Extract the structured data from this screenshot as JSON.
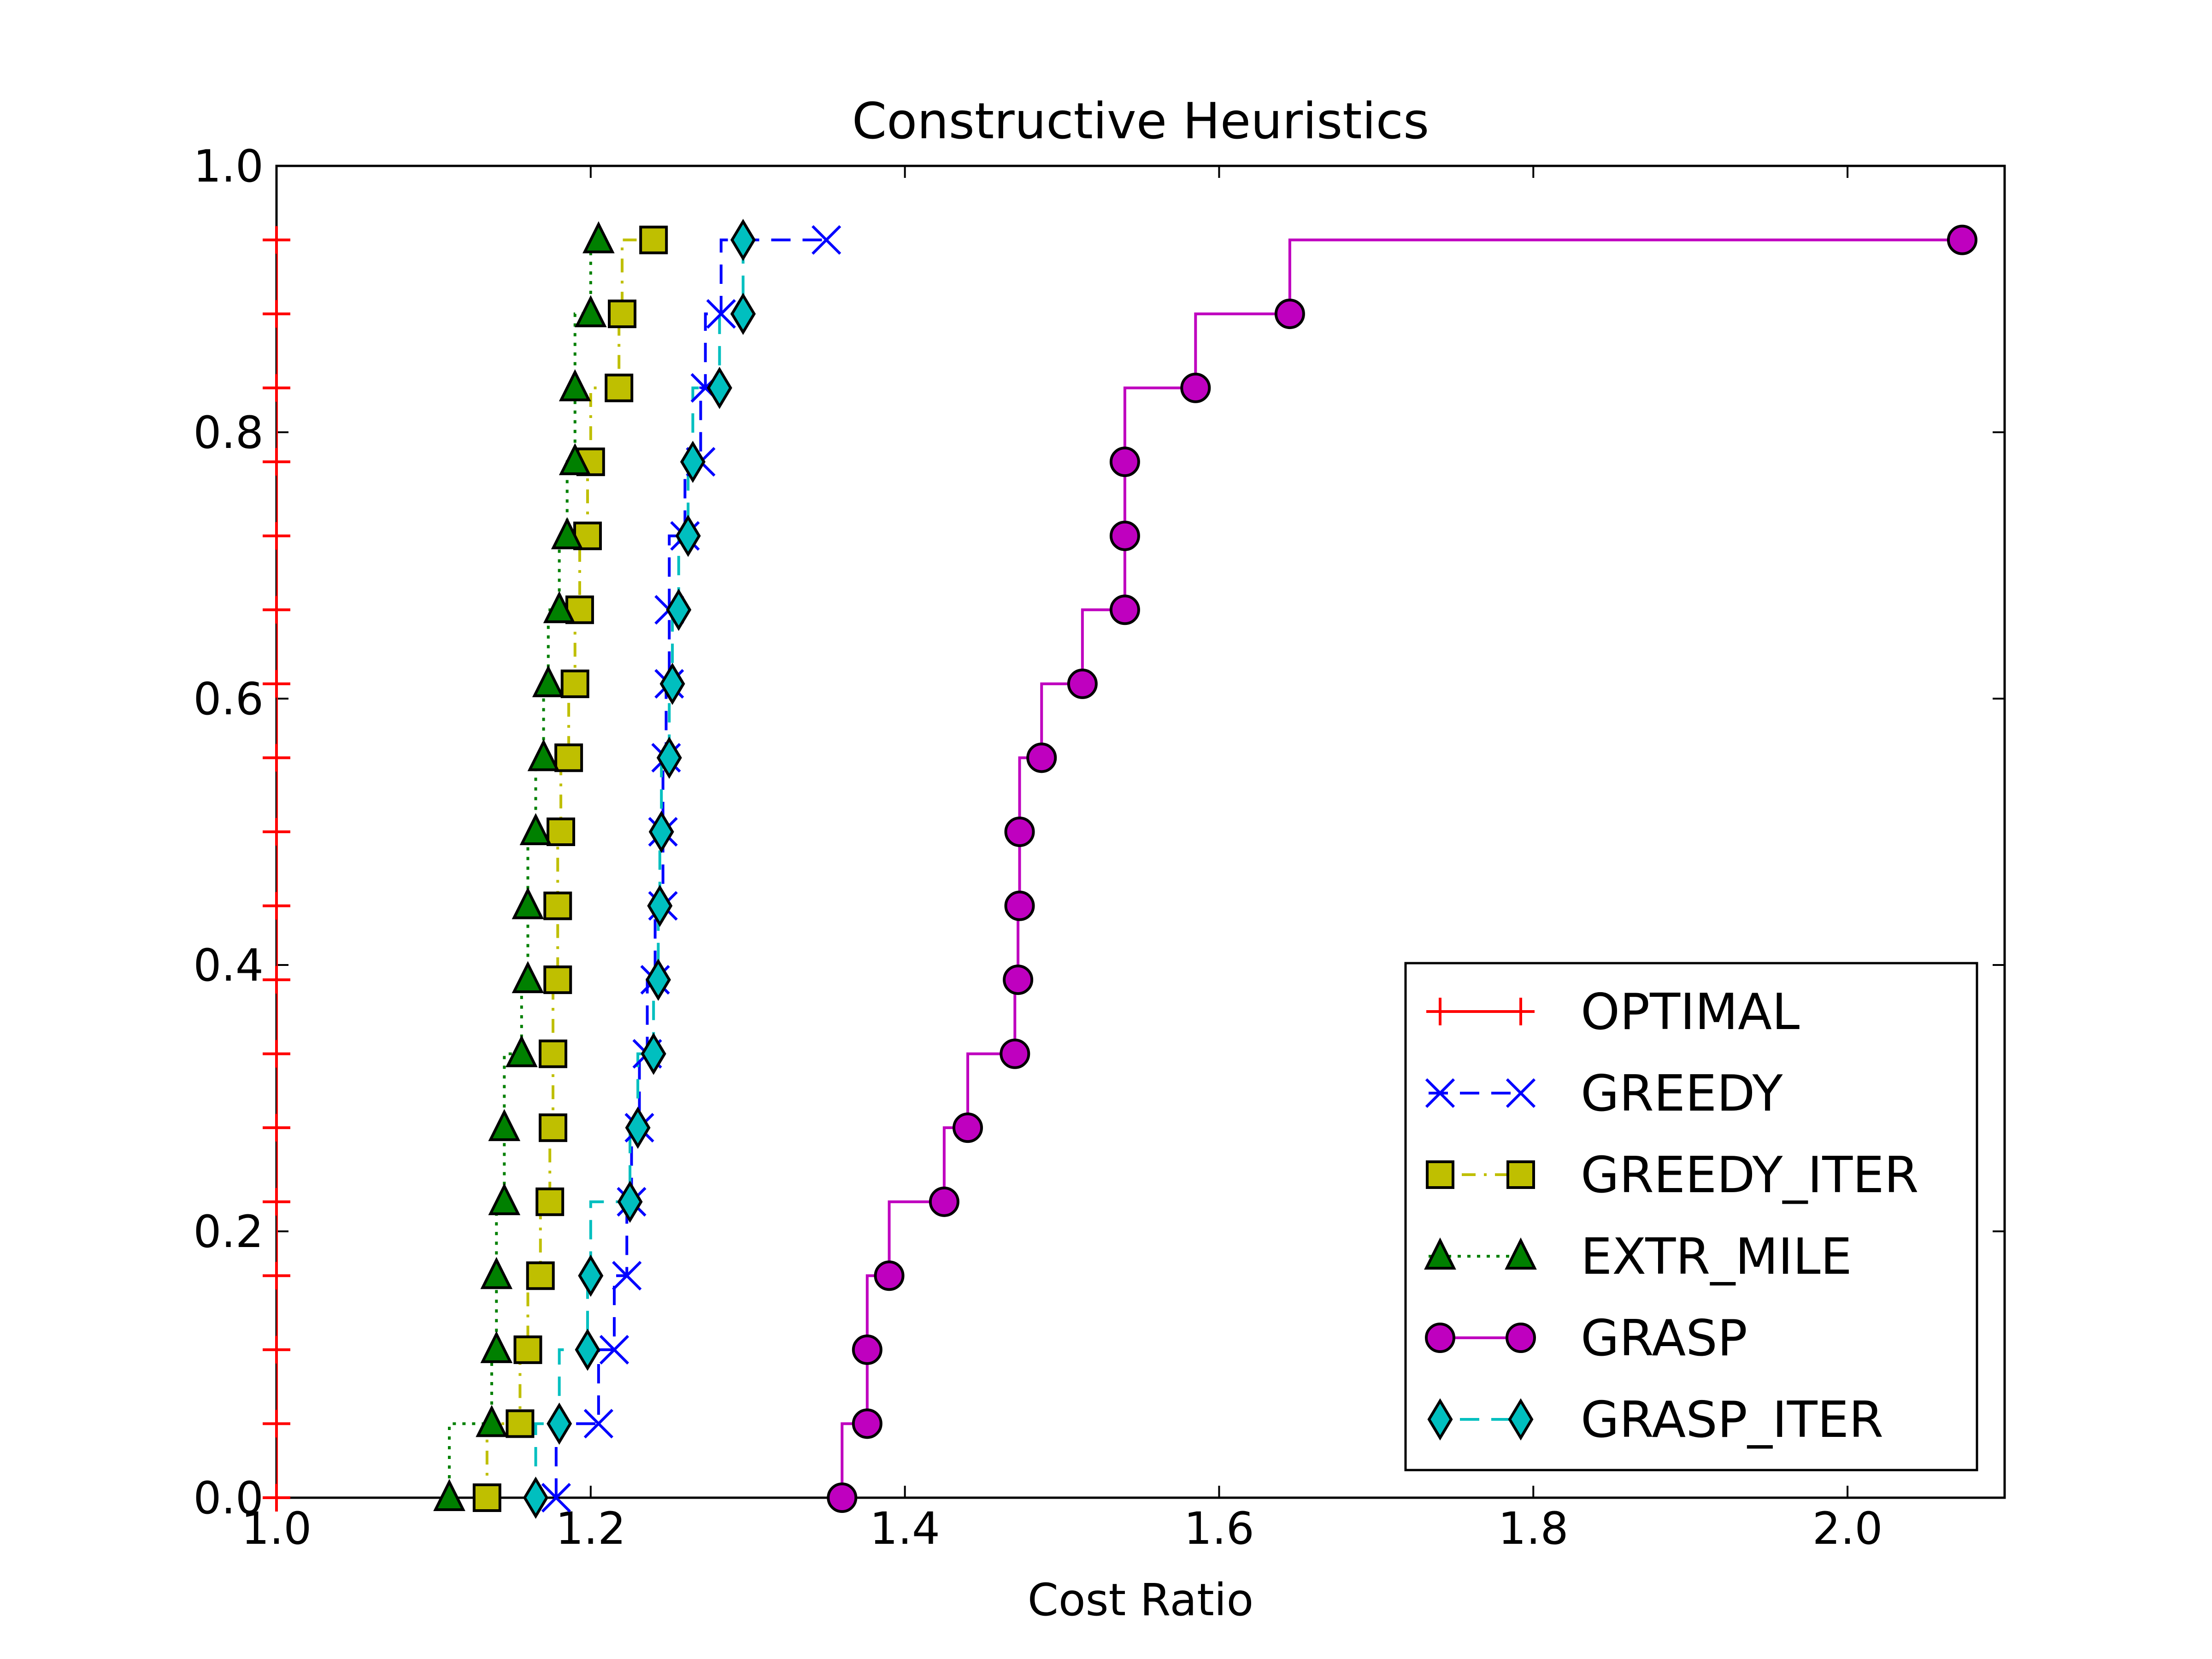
{
  "chart_data": {
    "type": "line",
    "title": "Constructive Heuristics",
    "xlabel": "Cost Ratio",
    "ylabel": "",
    "xlim": [
      1.0,
      2.1
    ],
    "ylim": [
      0.0,
      1.0
    ],
    "xticks": [
      "1.0",
      "1.2",
      "1.4",
      "1.6",
      "1.8",
      "2.0"
    ],
    "yticks": [
      "0.0",
      "0.2",
      "0.4",
      "0.6",
      "0.8",
      "1.0"
    ],
    "grid": false,
    "legend_position": "lower-right",
    "y_values": [
      0.0,
      0.0556,
      0.1111,
      0.1667,
      0.2222,
      0.2778,
      0.3333,
      0.3889,
      0.4444,
      0.5,
      0.5556,
      0.6111,
      0.6667,
      0.7222,
      0.7778,
      0.8333,
      0.8889,
      0.9444
    ],
    "series": [
      {
        "name": "OPTIMAL",
        "color": "#ff0000",
        "marker": "plus",
        "linestyle": "solid",
        "x": [
          1.0,
          1.0,
          1.0,
          1.0,
          1.0,
          1.0,
          1.0,
          1.0,
          1.0,
          1.0,
          1.0,
          1.0,
          1.0,
          1.0,
          1.0,
          1.0,
          1.0,
          1.0
        ]
      },
      {
        "name": "GREEDY",
        "color": "#0000ff",
        "marker": "x",
        "linestyle": "dashed",
        "x": [
          1.178,
          1.205,
          1.215,
          1.223,
          1.226,
          1.231,
          1.236,
          1.241,
          1.246,
          1.246,
          1.248,
          1.25,
          1.25,
          1.26,
          1.27,
          1.273,
          1.283,
          1.35
        ]
      },
      {
        "name": "GREEDY_ITER",
        "color": "#bfbf00",
        "marker": "square",
        "linestyle": "dashdot",
        "x": [
          1.134,
          1.155,
          1.16,
          1.168,
          1.174,
          1.176,
          1.176,
          1.179,
          1.179,
          1.181,
          1.186,
          1.19,
          1.193,
          1.198,
          1.2,
          1.218,
          1.22,
          1.24
        ]
      },
      {
        "name": "EXTR_MILE",
        "color": "#008000",
        "marker": "triangle",
        "linestyle": "dotted",
        "x": [
          1.11,
          1.137,
          1.14,
          1.14,
          1.145,
          1.145,
          1.156,
          1.16,
          1.16,
          1.165,
          1.17,
          1.173,
          1.18,
          1.185,
          1.19,
          1.19,
          1.2,
          1.205
        ]
      },
      {
        "name": "GRASP",
        "color": "#bf00bf",
        "marker": "circle",
        "linestyle": "solid",
        "x": [
          1.36,
          1.376,
          1.376,
          1.39,
          1.425,
          1.44,
          1.47,
          1.472,
          1.473,
          1.473,
          1.487,
          1.513,
          1.54,
          1.54,
          1.54,
          1.585,
          1.645,
          2.073
        ]
      },
      {
        "name": "GRASP_ITER",
        "color": "#00bfbf",
        "marker": "diamond",
        "linestyle": "dashed",
        "x": [
          1.165,
          1.18,
          1.198,
          1.2,
          1.225,
          1.23,
          1.24,
          1.243,
          1.244,
          1.245,
          1.25,
          1.252,
          1.256,
          1.262,
          1.265,
          1.282,
          1.297,
          1.297
        ]
      }
    ]
  }
}
